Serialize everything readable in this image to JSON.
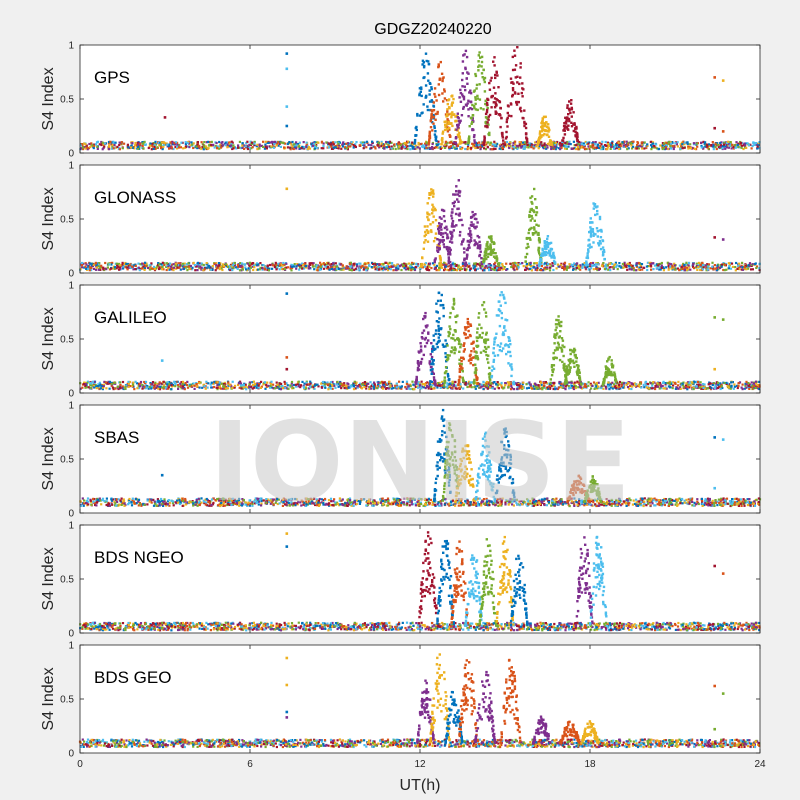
{
  "title": "GDGZ20240220",
  "watermark": "IONISE",
  "chart_data": {
    "type": "scatter",
    "title": "GDGZ20240220",
    "xlabel": "UT(h)",
    "ylabel": "S4 Index",
    "xlim": [
      0,
      24
    ],
    "ylim": [
      0,
      1
    ],
    "xticks": [
      0,
      6,
      12,
      18,
      24
    ],
    "yticks": [
      0,
      0.5,
      1
    ],
    "grid": false,
    "series_colors": [
      "#0072BD",
      "#D95319",
      "#EDB120",
      "#7E2F8E",
      "#77AC30",
      "#4DBEEE",
      "#A2142F"
    ],
    "panels": [
      {
        "label": "GPS",
        "baseline": 0.07,
        "isolated": [
          {
            "x": 3.0,
            "y": 0.33,
            "color": "#A2142F"
          },
          {
            "x": 7.3,
            "y": 0.92,
            "color": "#0072BD"
          },
          {
            "x": 7.3,
            "y": 0.78,
            "color": "#4DBEEE"
          },
          {
            "x": 7.3,
            "y": 0.43,
            "color": "#4DBEEE"
          },
          {
            "x": 7.3,
            "y": 0.25,
            "color": "#0072BD"
          },
          {
            "x": 22.4,
            "y": 0.7,
            "color": "#D95319"
          },
          {
            "x": 22.7,
            "y": 0.67,
            "color": "#EDB120"
          },
          {
            "x": 22.4,
            "y": 0.23,
            "color": "#A2142F"
          },
          {
            "x": 22.7,
            "y": 0.2,
            "color": "#D95319"
          }
        ],
        "bursts": [
          {
            "x": 12.2,
            "width": 0.8,
            "peak": 0.95,
            "color": "#0072BD"
          },
          {
            "x": 12.7,
            "width": 0.8,
            "peak": 0.85,
            "color": "#D95319"
          },
          {
            "x": 13.1,
            "width": 0.7,
            "peak": 0.55,
            "color": "#EDB120"
          },
          {
            "x": 13.6,
            "width": 0.7,
            "peak": 0.95,
            "color": "#7E2F8E"
          },
          {
            "x": 14.1,
            "width": 0.8,
            "peak": 0.95,
            "color": "#77AC30"
          },
          {
            "x": 14.6,
            "width": 0.7,
            "peak": 0.9,
            "color": "#A2142F"
          },
          {
            "x": 15.4,
            "width": 0.8,
            "peak": 1.0,
            "color": "#A2142F"
          },
          {
            "x": 16.4,
            "width": 0.5,
            "peak": 0.35,
            "color": "#EDB120"
          },
          {
            "x": 17.3,
            "width": 0.6,
            "peak": 0.5,
            "color": "#A2142F"
          }
        ]
      },
      {
        "label": "GLONASS",
        "baseline": 0.06,
        "isolated": [
          {
            "x": 7.3,
            "y": 0.78,
            "color": "#EDB120"
          },
          {
            "x": 22.4,
            "y": 0.33,
            "color": "#A2142F"
          },
          {
            "x": 22.7,
            "y": 0.31,
            "color": "#7E2F8E"
          }
        ],
        "bursts": [
          {
            "x": 12.4,
            "width": 0.7,
            "peak": 0.8,
            "color": "#EDB120"
          },
          {
            "x": 12.8,
            "width": 0.6,
            "peak": 0.6,
            "color": "#7E2F8E"
          },
          {
            "x": 13.3,
            "width": 0.6,
            "peak": 0.95,
            "color": "#7E2F8E"
          },
          {
            "x": 13.9,
            "width": 0.6,
            "peak": 0.6,
            "color": "#7E2F8E"
          },
          {
            "x": 14.5,
            "width": 0.6,
            "peak": 0.35,
            "color": "#77AC30"
          },
          {
            "x": 16.0,
            "width": 0.6,
            "peak": 0.8,
            "color": "#77AC30"
          },
          {
            "x": 16.5,
            "width": 0.6,
            "peak": 0.35,
            "color": "#4DBEEE"
          },
          {
            "x": 18.2,
            "width": 0.7,
            "peak": 0.7,
            "color": "#4DBEEE"
          }
        ]
      },
      {
        "label": "GALILEO",
        "baseline": 0.07,
        "isolated": [
          {
            "x": 2.9,
            "y": 0.3,
            "color": "#4DBEEE"
          },
          {
            "x": 7.3,
            "y": 0.92,
            "color": "#0072BD"
          },
          {
            "x": 7.3,
            "y": 0.33,
            "color": "#D95319"
          },
          {
            "x": 7.3,
            "y": 0.22,
            "color": "#A2142F"
          },
          {
            "x": 22.4,
            "y": 0.7,
            "color": "#77AC30"
          },
          {
            "x": 22.7,
            "y": 0.68,
            "color": "#77AC30"
          },
          {
            "x": 22.4,
            "y": 0.22,
            "color": "#EDB120"
          }
        ],
        "bursts": [
          {
            "x": 12.2,
            "width": 0.7,
            "peak": 0.75,
            "color": "#7E2F8E"
          },
          {
            "x": 12.7,
            "width": 0.7,
            "peak": 0.98,
            "color": "#0072BD"
          },
          {
            "x": 13.2,
            "width": 0.7,
            "peak": 0.9,
            "color": "#77AC30"
          },
          {
            "x": 13.7,
            "width": 0.7,
            "peak": 0.7,
            "color": "#D95319"
          },
          {
            "x": 14.2,
            "width": 0.6,
            "peak": 0.95,
            "color": "#77AC30"
          },
          {
            "x": 14.9,
            "width": 0.8,
            "peak": 0.95,
            "color": "#4DBEEE"
          },
          {
            "x": 16.9,
            "width": 0.6,
            "peak": 0.75,
            "color": "#77AC30"
          },
          {
            "x": 17.4,
            "width": 0.6,
            "peak": 0.45,
            "color": "#77AC30"
          },
          {
            "x": 18.7,
            "width": 0.5,
            "peak": 0.35,
            "color": "#77AC30"
          }
        ]
      },
      {
        "label": "SBAS",
        "baseline": 0.1,
        "isolated": [
          {
            "x": 2.9,
            "y": 0.35,
            "color": "#0072BD"
          },
          {
            "x": 22.4,
            "y": 0.7,
            "color": "#0072BD"
          },
          {
            "x": 22.7,
            "y": 0.68,
            "color": "#4DBEEE"
          },
          {
            "x": 22.4,
            "y": 0.23,
            "color": "#4DBEEE"
          }
        ],
        "bursts": [
          {
            "x": 12.8,
            "width": 0.6,
            "peak": 0.98,
            "color": "#0072BD"
          },
          {
            "x": 13.1,
            "width": 0.6,
            "peak": 0.9,
            "color": "#77AC30"
          },
          {
            "x": 13.6,
            "width": 0.7,
            "peak": 0.7,
            "color": "#EDB120"
          },
          {
            "x": 14.3,
            "width": 0.7,
            "peak": 0.75,
            "color": "#4DBEEE"
          },
          {
            "x": 15.0,
            "width": 0.7,
            "peak": 0.8,
            "color": "#0072BD"
          },
          {
            "x": 17.6,
            "width": 0.8,
            "peak": 0.35,
            "color": "#D95319"
          },
          {
            "x": 18.1,
            "width": 0.6,
            "peak": 0.35,
            "color": "#77AC30"
          }
        ]
      },
      {
        "label": "BDS NGEO",
        "baseline": 0.06,
        "isolated": [
          {
            "x": 7.3,
            "y": 0.92,
            "color": "#EDB120"
          },
          {
            "x": 7.3,
            "y": 0.8,
            "color": "#0072BD"
          },
          {
            "x": 22.4,
            "y": 0.62,
            "color": "#A2142F"
          },
          {
            "x": 22.7,
            "y": 0.55,
            "color": "#D95319"
          }
        ],
        "bursts": [
          {
            "x": 12.3,
            "width": 0.7,
            "peak": 0.95,
            "color": "#A2142F"
          },
          {
            "x": 12.9,
            "width": 0.6,
            "peak": 0.95,
            "color": "#0072BD"
          },
          {
            "x": 13.4,
            "width": 0.6,
            "peak": 0.9,
            "color": "#D95319"
          },
          {
            "x": 13.9,
            "width": 0.6,
            "peak": 0.8,
            "color": "#4DBEEE"
          },
          {
            "x": 14.4,
            "width": 0.6,
            "peak": 0.9,
            "color": "#77AC30"
          },
          {
            "x": 15.0,
            "width": 0.6,
            "peak": 0.98,
            "color": "#EDB120"
          },
          {
            "x": 15.5,
            "width": 0.6,
            "peak": 0.8,
            "color": "#0072BD"
          },
          {
            "x": 17.8,
            "width": 0.6,
            "peak": 0.95,
            "color": "#7E2F8E"
          },
          {
            "x": 18.3,
            "width": 0.6,
            "peak": 0.95,
            "color": "#4DBEEE"
          }
        ]
      },
      {
        "label": "BDS GEO",
        "baseline": 0.09,
        "isolated": [
          {
            "x": 7.3,
            "y": 0.88,
            "color": "#EDB120"
          },
          {
            "x": 7.3,
            "y": 0.63,
            "color": "#EDB120"
          },
          {
            "x": 7.3,
            "y": 0.38,
            "color": "#0072BD"
          },
          {
            "x": 7.3,
            "y": 0.33,
            "color": "#7E2F8E"
          },
          {
            "x": 22.4,
            "y": 0.62,
            "color": "#D95319"
          },
          {
            "x": 22.7,
            "y": 0.55,
            "color": "#77AC30"
          },
          {
            "x": 22.4,
            "y": 0.22,
            "color": "#77AC30"
          }
        ],
        "bursts": [
          {
            "x": 12.2,
            "width": 0.6,
            "peak": 0.7,
            "color": "#7E2F8E"
          },
          {
            "x": 12.7,
            "width": 0.7,
            "peak": 0.95,
            "color": "#EDB120"
          },
          {
            "x": 13.2,
            "width": 0.6,
            "peak": 0.6,
            "color": "#0072BD"
          },
          {
            "x": 13.7,
            "width": 0.7,
            "peak": 0.9,
            "color": "#D95319"
          },
          {
            "x": 14.3,
            "width": 0.7,
            "peak": 0.8,
            "color": "#7E2F8E"
          },
          {
            "x": 15.2,
            "width": 0.7,
            "peak": 0.9,
            "color": "#D95319"
          },
          {
            "x": 16.3,
            "width": 0.6,
            "peak": 0.35,
            "color": "#7E2F8E"
          },
          {
            "x": 17.3,
            "width": 0.7,
            "peak": 0.3,
            "color": "#D95319"
          },
          {
            "x": 18.0,
            "width": 0.6,
            "peak": 0.3,
            "color": "#EDB120"
          }
        ]
      }
    ]
  }
}
